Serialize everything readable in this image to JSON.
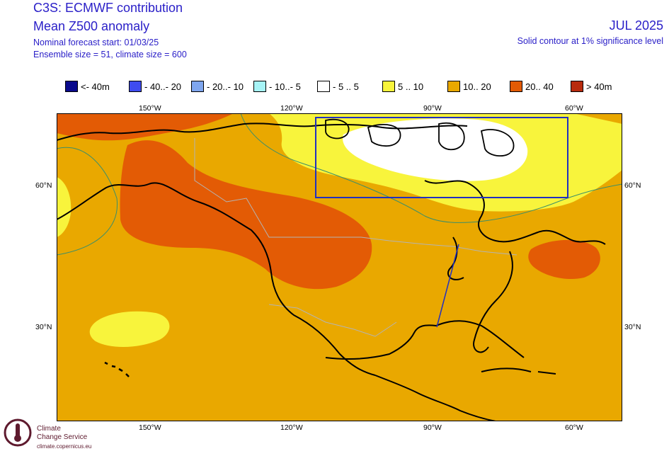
{
  "header": {
    "title_line1": "C3S: ECMWF contribution",
    "title_line2": "Mean Z500 anomaly",
    "forecast_start": "Nominal forecast start: 01/03/25",
    "ensemble": "Ensemble size = 51, climate size = 600",
    "valid_month": "JUL 2025",
    "significance_note": "Solid contour at 1% significance level"
  },
  "legend": [
    {
      "label": "<- 40m",
      "color": "#0a0a8c"
    },
    {
      "label": "- 40..- 20",
      "color": "#3f4cf0"
    },
    {
      "label": "- 20..- 10",
      "color": "#7fa6ee"
    },
    {
      "label": "- 10..- 5",
      "color": "#a6f3f6"
    },
    {
      "label": "- 5 .. 5",
      "color": "#ffffff"
    },
    {
      "label": "5 .. 10",
      "color": "#f8f43c"
    },
    {
      "label": "10.. 20",
      "color": "#e9a800"
    },
    {
      "label": "20.. 40",
      "color": "#e35b05"
    },
    {
      "label": ">  40m",
      "color": "#b82b0e"
    }
  ],
  "axes": {
    "top_lon": [
      "150°W",
      "120°W",
      "90°W",
      "60°W"
    ],
    "bottom_lon": [
      "150°W",
      "120°W",
      "90°W",
      "60°W"
    ],
    "left_lat": [
      "60°N",
      "30°N"
    ],
    "right_lat": [
      "60°N",
      "30°N"
    ]
  },
  "map": {
    "background_class": "10.. 20",
    "regions": [
      {
        "class": "20.. 40",
        "area": "Arctic Alaska / Beaufort Sea"
      },
      {
        "class": "20.. 40",
        "area": "Western Canada / Pacific Northwest"
      },
      {
        "class": "20.. 40",
        "area": "Nova Scotia / Gulf of St. Lawrence"
      },
      {
        "class": "5 .. 10",
        "area": "Northern Canada / Hudson Bay"
      },
      {
        "class": "- 5 .. 5",
        "area": "Canadian Arctic Archipelago"
      },
      {
        "class": "5 .. 10",
        "area": "Subtropical Eastern Pacific"
      },
      {
        "class": "5 .. 10",
        "area": "Bering Sea"
      }
    ],
    "box_color": "#2130c0"
  },
  "logo": {
    "name_line1": "Climate",
    "name_line2": "Change Service",
    "url": "climate.copernicus.eu",
    "color": "#5e1a2e"
  }
}
